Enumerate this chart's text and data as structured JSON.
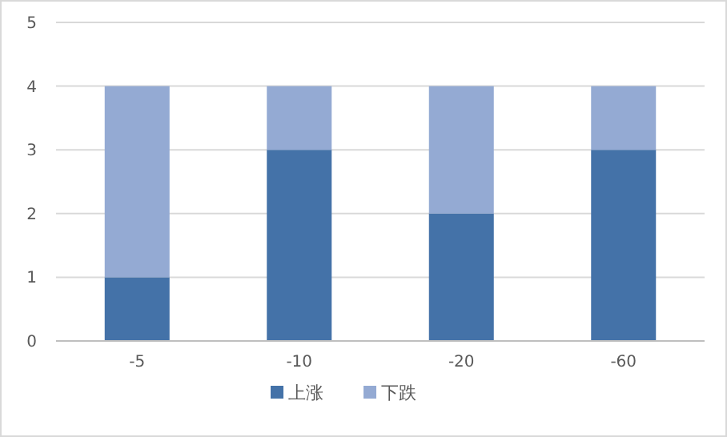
{
  "chart_data": {
    "type": "bar",
    "stacked": true,
    "categories": [
      "-5",
      "-10",
      "-20",
      "-60"
    ],
    "series": [
      {
        "name": "上涨",
        "color": "#4472a8",
        "values": [
          1,
          3,
          2,
          3
        ]
      },
      {
        "name": "下跌",
        "color": "#94aad3",
        "values": [
          3,
          1,
          2,
          1
        ]
      }
    ],
    "ylim": [
      0,
      5
    ],
    "yticks": [
      0,
      1,
      2,
      3,
      4,
      5
    ],
    "grid": "y",
    "legend": "bottom"
  }
}
